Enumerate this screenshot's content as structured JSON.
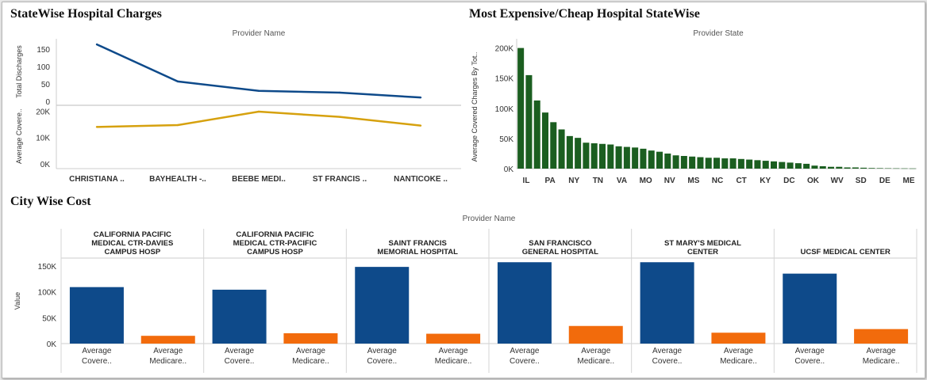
{
  "titles": {
    "statewise": "StateWise Hospital Charges",
    "expensive": "Most Expensive/Cheap Hospital StateWise",
    "citywise": "City Wise Cost"
  },
  "colors": {
    "blue": "#0e4a8a",
    "gold": "#d6a10e",
    "green": "#1b5e20",
    "orange": "#f26b0c"
  },
  "chart_data": [
    {
      "type": "line",
      "title": "StateWise Hospital Charges",
      "header": "Provider Name",
      "categories": [
        "CHRISTIANA ..",
        "BAYHEALTH -..",
        "BEEBE MEDI..",
        "ST FRANCIS ..",
        "NANTICOKE .."
      ],
      "panels": [
        {
          "ylabel": "Total Discharges",
          "ylim": [
            0,
            170
          ],
          "ticks": [
            0,
            50,
            100,
            150
          ],
          "tick_labels": [
            "0",
            "50",
            "100",
            "150"
          ],
          "color": "#0e4a8a",
          "values": [
            163,
            57,
            30,
            25,
            11
          ]
        },
        {
          "ylabel": "Average Covere..",
          "ylim": [
            0,
            21000
          ],
          "ticks": [
            0,
            10000,
            20000
          ],
          "tick_labels": [
            "0K",
            "10K",
            "20K"
          ],
          "color": "#d6a10e",
          "values": [
            14000,
            14700,
            19800,
            17800,
            14500
          ]
        }
      ]
    },
    {
      "type": "bar",
      "title": "Most Expensive/Cheap Hospital StateWise",
      "header": "Provider State",
      "ylabel": "Average Covered Charges By Tot..",
      "ylim": [
        0,
        210000
      ],
      "ticks": [
        0,
        50000,
        100000,
        150000,
        200000
      ],
      "tick_labels": [
        "0K",
        "50K",
        "100K",
        "150K",
        "200K"
      ],
      "x_tick_labels": [
        "IL",
        "PA",
        "NY",
        "TN",
        "VA",
        "MO",
        "NV",
        "MS",
        "NC",
        "CT",
        "KY",
        "DC",
        "OK",
        "WV",
        "SD",
        "DE",
        "ME"
      ],
      "values": [
        200000,
        155000,
        113000,
        93000,
        77000,
        65000,
        54000,
        51000,
        43000,
        42000,
        41000,
        40000,
        37000,
        36000,
        35000,
        33000,
        30000,
        28000,
        25000,
        22000,
        21000,
        20000,
        19000,
        18000,
        18000,
        17000,
        17000,
        16000,
        15000,
        14000,
        13000,
        12000,
        11000,
        10000,
        9000,
        8000,
        5000,
        4000,
        3000,
        3000,
        2000,
        2000,
        1500,
        1000,
        800,
        600,
        500,
        400,
        300
      ]
    },
    {
      "type": "bar",
      "title": "City Wise Cost",
      "header": "Provider Name",
      "ylabel": "Value",
      "ylim": [
        0,
        165000
      ],
      "ticks": [
        0,
        50000,
        100000,
        150000
      ],
      "tick_labels": [
        "0K",
        "50K",
        "100K",
        "150K"
      ],
      "groups": [
        {
          "name": [
            "CALIFORNIA PACIFIC",
            "MEDICAL CTR-DAVIES",
            "CAMPUS HOSP"
          ],
          "values": [
            109000,
            15000
          ]
        },
        {
          "name": [
            "CALIFORNIA PACIFIC",
            "MEDICAL CTR-PACIFIC",
            "CAMPUS HOSP"
          ],
          "values": [
            104000,
            20000
          ]
        },
        {
          "name": [
            "SAINT FRANCIS",
            "MEMORIAL HOSPITAL"
          ],
          "values": [
            148000,
            19000
          ]
        },
        {
          "name": [
            "SAN FRANCISCO",
            "GENERAL HOSPITAL"
          ],
          "values": [
            157000,
            34000
          ]
        },
        {
          "name": [
            "ST MARY'S MEDICAL",
            "CENTER"
          ],
          "values": [
            157000,
            21000
          ]
        },
        {
          "name": [
            "UCSF MEDICAL CENTER"
          ],
          "values": [
            135000,
            28000
          ]
        }
      ],
      "bar_labels": [
        [
          "Average",
          "Covere.."
        ],
        [
          "Average",
          "Medicare.."
        ]
      ],
      "series_colors": [
        "#0e4a8a",
        "#f26b0c"
      ]
    }
  ]
}
